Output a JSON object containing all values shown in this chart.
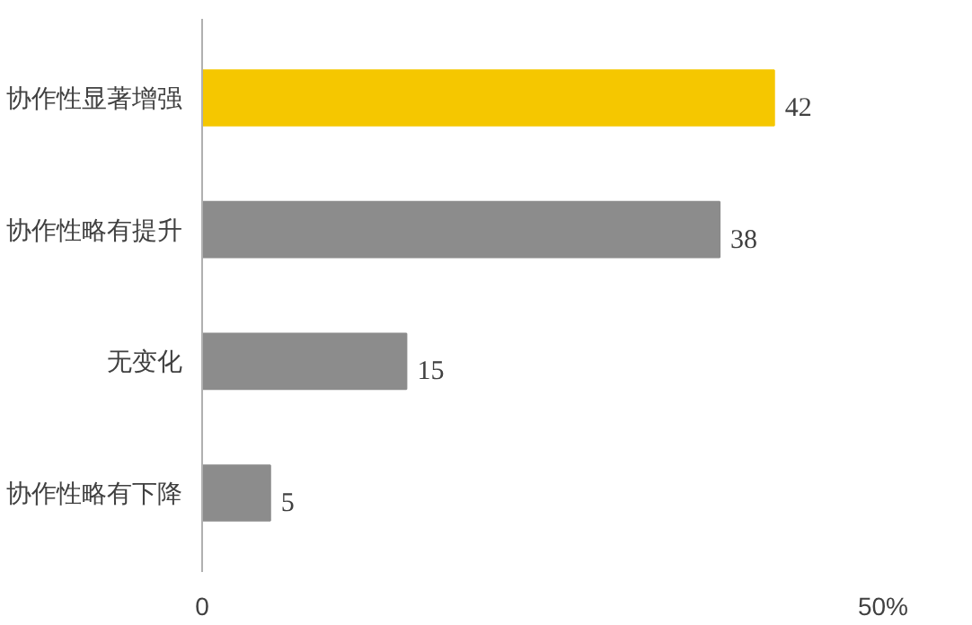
{
  "chart_data": {
    "type": "bar",
    "orientation": "horizontal",
    "categories": [
      "协作性显著增强",
      "协作性略有提升",
      "无变化",
      "协作性略有下降"
    ],
    "values": [
      42,
      38,
      15,
      5
    ],
    "colors": [
      "#f5c700",
      "#8c8c8c",
      "#8c8c8c",
      "#8c8c8c"
    ],
    "xlim": [
      0,
      50
    ],
    "xticks": [
      0,
      {
        "value": 50,
        "label": "50%"
      }
    ],
    "data_labels": true,
    "grid": false
  }
}
